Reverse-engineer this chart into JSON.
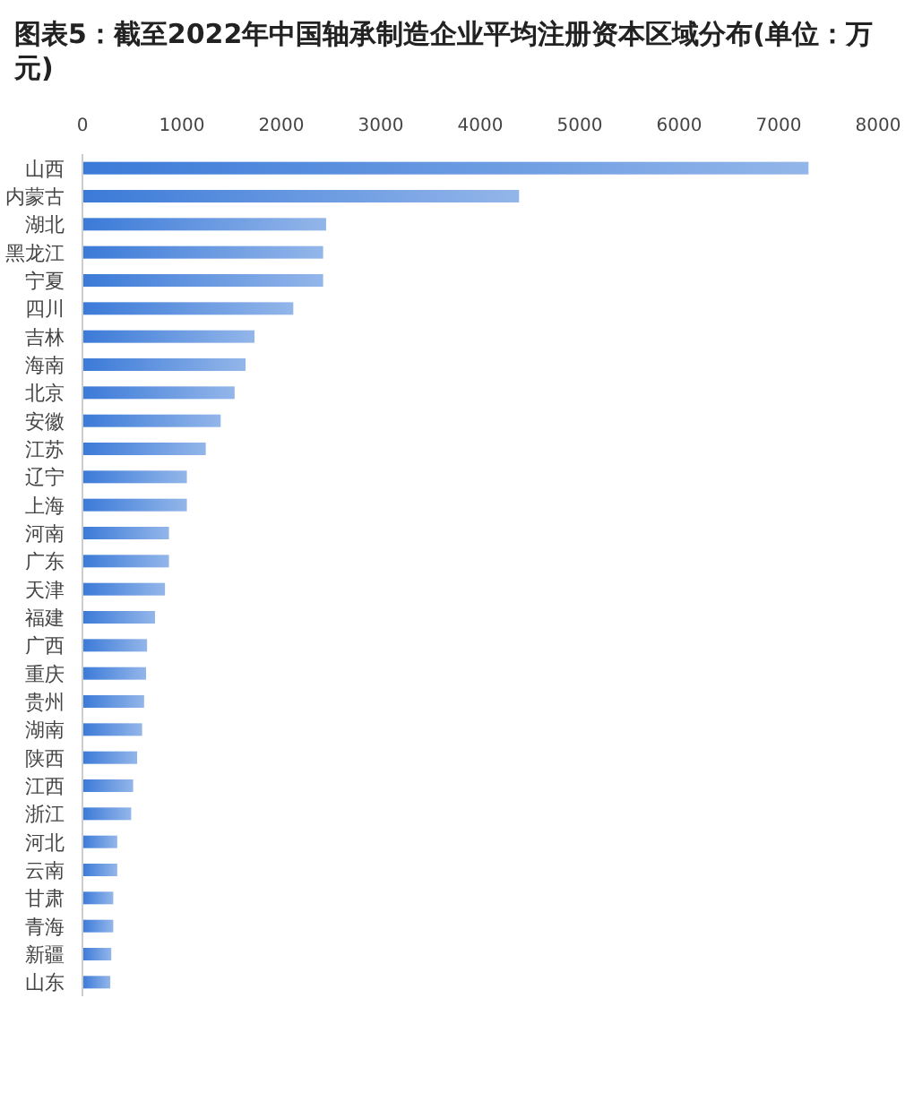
{
  "chart_data": {
    "type": "bar",
    "orientation": "horizontal",
    "title": "图表5：截至2022年中国轴承制造企业平均注册资本区域分布(单位：万元)",
    "categories": [
      "山西",
      "内蒙古",
      "湖北",
      "黑龙江",
      "宁夏",
      "四川",
      "吉林",
      "海南",
      "北京",
      "安徽",
      "江苏",
      "辽宁",
      "上海",
      "河南",
      "广东",
      "天津",
      "福建",
      "广西",
      "重庆",
      "贵州",
      "湖南",
      "陕西",
      "江西",
      "浙江",
      "河北",
      "云南",
      "甘肃",
      "青海",
      "新疆",
      "山东"
    ],
    "values": [
      7300,
      4390,
      2450,
      2420,
      2420,
      2120,
      1730,
      1640,
      1530,
      1390,
      1240,
      1050,
      1050,
      870,
      870,
      830,
      730,
      650,
      640,
      620,
      600,
      550,
      510,
      490,
      350,
      350,
      310,
      310,
      290,
      280
    ],
    "color": "#3b7ad8",
    "xlim": [
      0,
      8000
    ],
    "xticks": [
      0,
      1000,
      2000,
      3000,
      4000,
      5000,
      6000,
      7000,
      8000
    ],
    "grid": false
  }
}
